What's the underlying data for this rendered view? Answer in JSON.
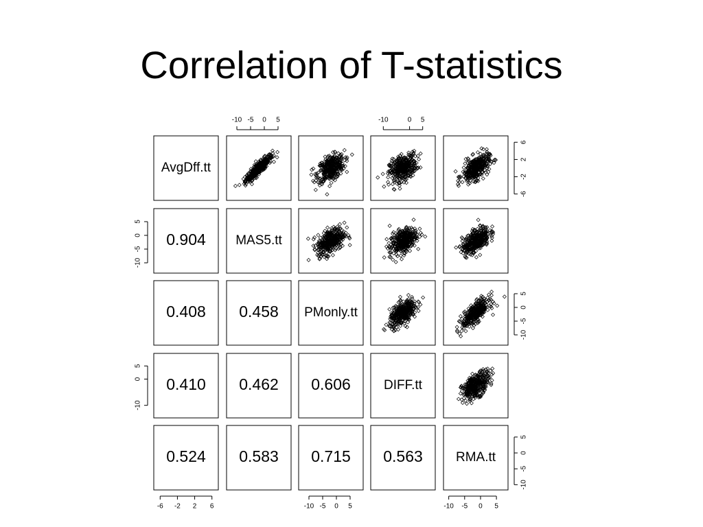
{
  "slide": {
    "title": "Correlation of T-statistics"
  },
  "chart_data": {
    "type": "scatter",
    "variables": [
      "AvgDff.tt",
      "MAS5.tt",
      "PMonly.tt",
      "DIFF.tt",
      "RMA.tt"
    ],
    "correlations": [
      {
        "row": 1,
        "col": 0,
        "value": "0.904"
      },
      {
        "row": 2,
        "col": 0,
        "value": "0.408"
      },
      {
        "row": 2,
        "col": 1,
        "value": "0.458"
      },
      {
        "row": 3,
        "col": 0,
        "value": "0.410"
      },
      {
        "row": 3,
        "col": 1,
        "value": "0.462"
      },
      {
        "row": 3,
        "col": 2,
        "value": "0.606"
      },
      {
        "row": 4,
        "col": 0,
        "value": "0.524"
      },
      {
        "row": 4,
        "col": 1,
        "value": "0.583"
      },
      {
        "row": 4,
        "col": 2,
        "value": "0.715"
      },
      {
        "row": 4,
        "col": 3,
        "value": "0.563"
      }
    ],
    "ranges": [
      [
        -7,
        7
      ],
      [
        -13,
        9
      ],
      [
        -13,
        9
      ],
      [
        -14,
        9
      ],
      [
        -11,
        8
      ]
    ],
    "axes": {
      "top": [
        {
          "col": 1,
          "ticks": [
            "-10",
            "-5",
            "0",
            "5"
          ]
        },
        {
          "col": 3,
          "ticks": [
            "-10",
            "0",
            "5"
          ]
        }
      ],
      "bottom": [
        {
          "col": 0,
          "ticks": [
            "-6",
            "-2",
            "2",
            "6"
          ]
        },
        {
          "col": 2,
          "ticks": [
            "-10",
            "-5",
            "0",
            "5"
          ]
        },
        {
          "col": 4,
          "ticks": [
            "-10",
            "-5",
            "0",
            "5"
          ]
        }
      ],
      "left": [
        {
          "row": 1,
          "ticks": [
            "5",
            "0",
            "-5",
            "-10"
          ]
        },
        {
          "row": 3,
          "ticks": [
            "5",
            "0",
            "-10"
          ]
        }
      ],
      "right": [
        {
          "row": 0,
          "ticks": [
            "6",
            "2",
            "-2",
            "-6"
          ]
        },
        {
          "row": 2,
          "ticks": [
            "5",
            "0",
            "-5",
            "-10"
          ]
        },
        {
          "row": 4,
          "ticks": [
            "5",
            "0",
            "-5",
            "-10"
          ]
        }
      ]
    },
    "grid": false,
    "legend": "none"
  }
}
